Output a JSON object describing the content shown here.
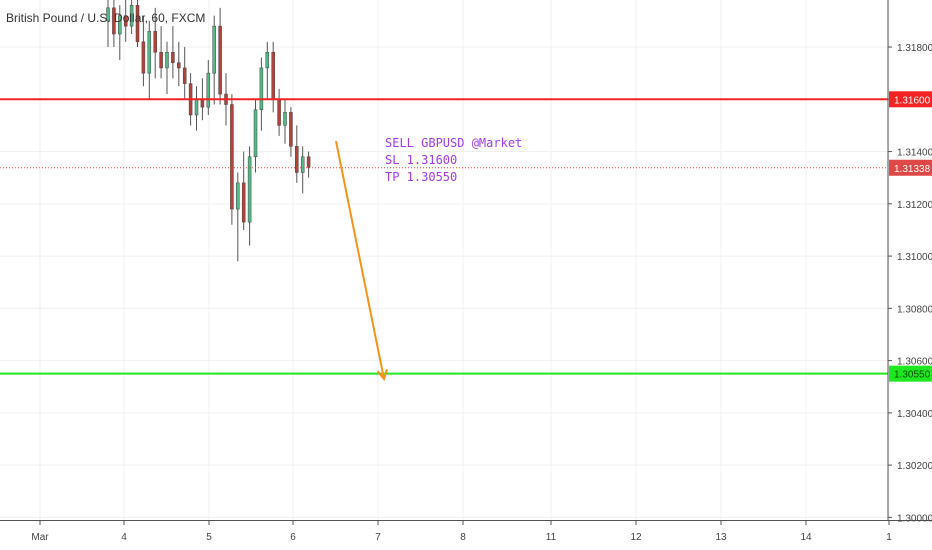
{
  "header": {
    "title": "British Pound / U.S. Dollar, 60, FXCM"
  },
  "annotation": {
    "line1": "SELL GBPUSD @Market",
    "line2": "SL 1.31600",
    "line3": "TP 1.30550"
  },
  "price_tags": {
    "stop_loss": "1.31600",
    "current": "1.31338",
    "take_profit": "1.30550"
  },
  "colors": {
    "stop_loss": "#f42323",
    "take_profit": "#20e820",
    "current": "#e04848",
    "arrow": "#f7931a",
    "candle_up": "#53b987",
    "candle_down": "#b2423a",
    "annotation": "#a13cf0"
  },
  "chart_data": {
    "type": "candlestick",
    "title": "British Pound / U.S. Dollar, 60, FXCM",
    "xlabels": [
      "Mar",
      "4",
      "5",
      "6",
      "7",
      "8",
      "11",
      "12",
      "13",
      "14",
      "1"
    ],
    "ylabels": [
      "1.31800",
      "1.31600",
      "1.31400",
      "1.31200",
      "1.31000",
      "1.30800",
      "1.30600",
      "1.30400",
      "1.30200",
      "1.30000"
    ],
    "ylim": [
      1.2999,
      1.3198
    ],
    "grid": true,
    "horizontal_lines": [
      {
        "label": "SL",
        "value": 1.316
      },
      {
        "label": "current",
        "value": 1.31338
      },
      {
        "label": "TP",
        "value": 1.3055
      }
    ],
    "arrow": {
      "from": [
        "6",
        1.3144
      ],
      "to": [
        "7",
        1.3053
      ]
    },
    "candles": [
      {
        "o": 1.319,
        "h": 1.3205,
        "l": 1.318,
        "c": 1.3195
      },
      {
        "o": 1.3195,
        "h": 1.321,
        "l": 1.318,
        "c": 1.3185
      },
      {
        "o": 1.3185,
        "h": 1.3196,
        "l": 1.3175,
        "c": 1.3192
      },
      {
        "o": 1.3192,
        "h": 1.3202,
        "l": 1.3182,
        "c": 1.3188
      },
      {
        "o": 1.3188,
        "h": 1.32,
        "l": 1.3185,
        "c": 1.3196
      },
      {
        "o": 1.3196,
        "h": 1.3205,
        "l": 1.318,
        "c": 1.3182
      },
      {
        "o": 1.3182,
        "h": 1.3192,
        "l": 1.3165,
        "c": 1.317
      },
      {
        "o": 1.317,
        "h": 1.319,
        "l": 1.316,
        "c": 1.3186
      },
      {
        "o": 1.3186,
        "h": 1.3195,
        "l": 1.3168,
        "c": 1.3178
      },
      {
        "o": 1.3178,
        "h": 1.3188,
        "l": 1.3168,
        "c": 1.3172
      },
      {
        "o": 1.3172,
        "h": 1.3182,
        "l": 1.3162,
        "c": 1.3178
      },
      {
        "o": 1.3178,
        "h": 1.3188,
        "l": 1.3168,
        "c": 1.3174
      },
      {
        "o": 1.3174,
        "h": 1.3182,
        "l": 1.3165,
        "c": 1.3172
      },
      {
        "o": 1.3172,
        "h": 1.318,
        "l": 1.316,
        "c": 1.3166
      },
      {
        "o": 1.3166,
        "h": 1.317,
        "l": 1.315,
        "c": 1.3154
      },
      {
        "o": 1.3154,
        "h": 1.3165,
        "l": 1.3148,
        "c": 1.316
      },
      {
        "o": 1.316,
        "h": 1.3168,
        "l": 1.3152,
        "c": 1.3157
      },
      {
        "o": 1.3157,
        "h": 1.3175,
        "l": 1.3154,
        "c": 1.317
      },
      {
        "o": 1.317,
        "h": 1.3192,
        "l": 1.3158,
        "c": 1.3188
      },
      {
        "o": 1.3188,
        "h": 1.3195,
        "l": 1.3158,
        "c": 1.3162
      },
      {
        "o": 1.3162,
        "h": 1.317,
        "l": 1.315,
        "c": 1.3158
      },
      {
        "o": 1.3158,
        "h": 1.3162,
        "l": 1.3112,
        "c": 1.3118
      },
      {
        "o": 1.3118,
        "h": 1.3132,
        "l": 1.3098,
        "c": 1.3128
      },
      {
        "o": 1.3128,
        "h": 1.314,
        "l": 1.311,
        "c": 1.3113
      },
      {
        "o": 1.3113,
        "h": 1.3142,
        "l": 1.3104,
        "c": 1.3138
      },
      {
        "o": 1.3138,
        "h": 1.316,
        "l": 1.3132,
        "c": 1.3156
      },
      {
        "o": 1.3156,
        "h": 1.3176,
        "l": 1.3148,
        "c": 1.3172
      },
      {
        "o": 1.3172,
        "h": 1.3182,
        "l": 1.316,
        "c": 1.3178
      },
      {
        "o": 1.3178,
        "h": 1.3182,
        "l": 1.3155,
        "c": 1.316
      },
      {
        "o": 1.316,
        "h": 1.3164,
        "l": 1.3146,
        "c": 1.315
      },
      {
        "o": 1.315,
        "h": 1.316,
        "l": 1.3143,
        "c": 1.3155
      },
      {
        "o": 1.3155,
        "h": 1.3157,
        "l": 1.3138,
        "c": 1.3142
      },
      {
        "o": 1.3142,
        "h": 1.315,
        "l": 1.3128,
        "c": 1.3132
      },
      {
        "o": 1.3132,
        "h": 1.3142,
        "l": 1.3124,
        "c": 1.3138
      },
      {
        "o": 1.3138,
        "h": 1.314,
        "l": 1.313,
        "c": 1.3134
      }
    ]
  }
}
